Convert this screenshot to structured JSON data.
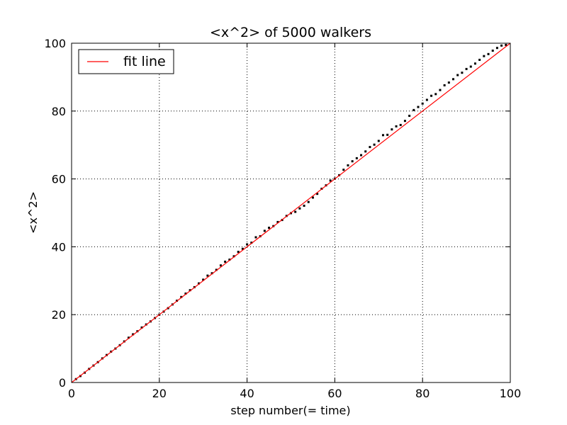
{
  "chart_data": {
    "type": "scatter",
    "title": "<x^2> of 5000 walkers",
    "xlabel": "step number(= time)",
    "ylabel": "<x^2>",
    "xlim": [
      0,
      100
    ],
    "ylim": [
      0,
      100
    ],
    "xticks": [
      0,
      20,
      40,
      60,
      80,
      100
    ],
    "yticks": [
      0,
      20,
      40,
      60,
      80,
      100
    ],
    "grid": true,
    "legend_position": "top-left",
    "colors": {
      "points": "#000000",
      "fit": "#ff0000"
    },
    "series": [
      {
        "kind": "points",
        "x": [
          1,
          2,
          3,
          4,
          5,
          6,
          7,
          8,
          9,
          10,
          11,
          12,
          13,
          14,
          15,
          16,
          17,
          18,
          19,
          20,
          21,
          22,
          23,
          24,
          25,
          26,
          27,
          28,
          29,
          30,
          31,
          32,
          33,
          34,
          35,
          36,
          37,
          38,
          39,
          40,
          41,
          42,
          43,
          44,
          45,
          46,
          47,
          48,
          49,
          50,
          51,
          52,
          53,
          54,
          55,
          56,
          57,
          58,
          59,
          60,
          61,
          62,
          63,
          64,
          65,
          66,
          67,
          68,
          69,
          70,
          71,
          72,
          73,
          74,
          75,
          76,
          77,
          78,
          79,
          80,
          81,
          82,
          83,
          84,
          85,
          86,
          87,
          88,
          89,
          90,
          91,
          92,
          93,
          94,
          95,
          96,
          97,
          98,
          99
        ],
        "y": [
          1.0,
          1.9,
          2.9,
          4.0,
          5.0,
          6.0,
          7.1,
          8.1,
          9.1,
          10.0,
          11.0,
          12.1,
          13.2,
          14.2,
          15.1,
          16.2,
          17.1,
          18.0,
          19.0,
          20.0,
          20.9,
          21.9,
          23.0,
          24.1,
          25.2,
          26.2,
          27.2,
          28.1,
          29.2,
          30.3,
          31.5,
          32.2,
          33.2,
          34.5,
          35.6,
          36.2,
          37.2,
          38.5,
          39.4,
          40.7,
          41.2,
          42.8,
          43.1,
          44.7,
          45.6,
          46.1,
          47.3,
          47.9,
          49.1,
          49.9,
          50.3,
          51.3,
          52.1,
          53.2,
          54.5,
          55.6,
          57.1,
          58.1,
          59.5,
          60.1,
          61.1,
          62.7,
          64.0,
          65.2,
          66.1,
          67.0,
          68.1,
          69.4,
          70.1,
          71.2,
          72.9,
          73.0,
          74.6,
          75.5,
          75.9,
          77.1,
          78.6,
          80.3,
          81.2,
          82.2,
          83.3,
          84.5,
          85.0,
          86.2,
          87.6,
          88.4,
          89.4,
          90.6,
          91.3,
          92.4,
          93.1,
          94.0,
          95.1,
          96.2,
          96.8,
          97.8,
          98.6,
          99.3,
          99.5
        ]
      },
      {
        "kind": "line",
        "name": "fit line",
        "x": [
          0,
          100
        ],
        "y": [
          0,
          101
        ]
      }
    ]
  }
}
